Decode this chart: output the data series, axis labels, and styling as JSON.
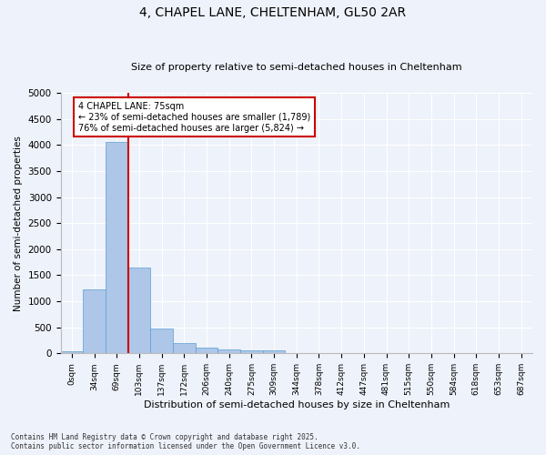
{
  "title_line1": "4, CHAPEL LANE, CHELTENHAM, GL50 2AR",
  "title_line2": "Size of property relative to semi-detached houses in Cheltenham",
  "xlabel": "Distribution of semi-detached houses by size in Cheltenham",
  "ylabel": "Number of semi-detached properties",
  "categories": [
    "0sqm",
    "34sqm",
    "69sqm",
    "103sqm",
    "137sqm",
    "172sqm",
    "206sqm",
    "240sqm",
    "275sqm",
    "309sqm",
    "344sqm",
    "378sqm",
    "412sqm",
    "447sqm",
    "481sqm",
    "515sqm",
    "550sqm",
    "584sqm",
    "618sqm",
    "653sqm",
    "687sqm"
  ],
  "values": [
    40,
    1230,
    4050,
    1640,
    480,
    190,
    115,
    80,
    60,
    50,
    0,
    0,
    0,
    0,
    0,
    0,
    0,
    0,
    0,
    0,
    0
  ],
  "bar_color": "#aec6e8",
  "bar_edge_color": "#5a9fd4",
  "vline_x": 2,
  "vline_color": "#cc0000",
  "annotation_title": "4 CHAPEL LANE: 75sqm",
  "annotation_line1": "← 23% of semi-detached houses are smaller (1,789)",
  "annotation_line2": "76% of semi-detached houses are larger (5,824) →",
  "annotation_box_color": "#cc0000",
  "ylim": [
    0,
    5000
  ],
  "yticks": [
    0,
    500,
    1000,
    1500,
    2000,
    2500,
    3000,
    3500,
    4000,
    4500,
    5000
  ],
  "footer_line1": "Contains HM Land Registry data © Crown copyright and database right 2025.",
  "footer_line2": "Contains public sector information licensed under the Open Government Licence v3.0.",
  "bg_color": "#eef2fa",
  "plot_bg_color": "#eef2fa"
}
